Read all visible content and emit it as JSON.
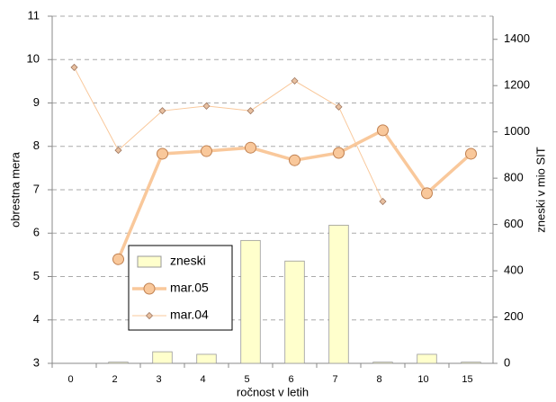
{
  "chart_data": {
    "type": "bar-line",
    "categories": [
      "0",
      "2",
      "3",
      "4",
      "5",
      "6",
      "7",
      "8",
      "10",
      "15"
    ],
    "x_label": "ročnost v letih",
    "y_label": "obrestna mera",
    "y2_label": "zneski v mio SIT",
    "ylim": [
      3,
      11
    ],
    "yticks": [
      3,
      4,
      5,
      6,
      7,
      8,
      9,
      10,
      11
    ],
    "y2lim": [
      0,
      1500
    ],
    "y2ticks": [
      0,
      200,
      400,
      600,
      800,
      1000,
      1200,
      1400
    ],
    "grid": true,
    "legend": "lower left",
    "series": [
      {
        "name": "zneski",
        "type": "bar",
        "axis": "y2",
        "color": "#ffffcc",
        "values": [
          0,
          5,
          50,
          39,
          531,
          442,
          597,
          5,
          39,
          5
        ]
      },
      {
        "name": "mar.05",
        "type": "line",
        "marker": "circle",
        "color": "#f9c89b",
        "values": [
          null,
          5.4,
          7.83,
          7.89,
          7.97,
          7.68,
          7.85,
          8.37,
          6.92,
          7.83
        ]
      },
      {
        "name": "mar.04",
        "type": "line",
        "marker": "diamond",
        "color": "#f9c89b",
        "values": [
          9.82,
          7.91,
          8.82,
          8.93,
          8.82,
          9.51,
          8.91,
          6.73,
          null,
          null
        ]
      }
    ]
  }
}
